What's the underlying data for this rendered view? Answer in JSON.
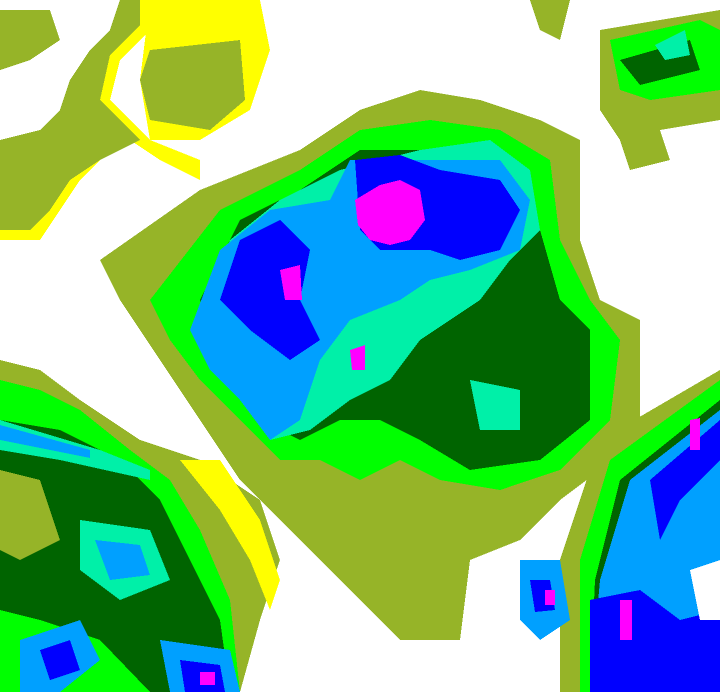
{
  "palette": {
    "background": "#ffffff",
    "olive": "#96b428",
    "yellow": "#ffff00",
    "green": "#00ff00",
    "dark_green": "#006400",
    "aquamarine": "#00f0a8",
    "sky_blue": "#00a0ff",
    "blue": "#0000ff",
    "magenta": "#ff00ff"
  }
}
